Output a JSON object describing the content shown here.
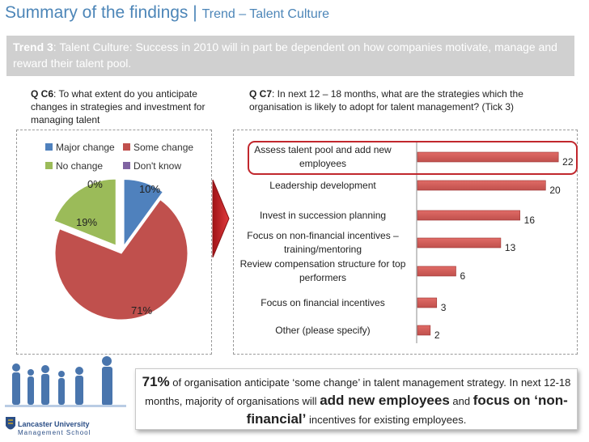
{
  "header": {
    "title": "Summary of the findings",
    "separator": " | ",
    "subtitle": "Trend – Talent Culture"
  },
  "trend": {
    "label": "Trend 3",
    "text": ": Talent Culture: Success in 2010 will in part be dependent on how companies motivate, manage and reward their talent pool."
  },
  "questions": {
    "c6": {
      "code": "Q C6",
      "text": ": To what extent do you anticipate changes in strategies and investment for managing talent"
    },
    "c7": {
      "code": "Q C7",
      "text": ": In next 12 – 18 months, what are the strategies which the organisation is likely to adopt for talent management? (Tick 3)"
    }
  },
  "chart_data": [
    {
      "type": "pie",
      "question": "Q C6",
      "legend_position": "top",
      "categories": [
        "Major change",
        "Some change",
        "No change",
        "Don't know"
      ],
      "values": [
        10,
        71,
        19,
        0
      ],
      "labels": [
        "10%",
        "71%",
        "19%",
        "0%"
      ],
      "colors": [
        "#4f81bd",
        "#c0504d",
        "#9bbb59",
        "#8064a2"
      ],
      "exploded": true
    },
    {
      "type": "bar",
      "orientation": "horizontal",
      "question": "Q C7",
      "categories": [
        "Assess talent pool and add new employees",
        "Leadership development",
        "Invest in succession planning",
        "Focus on non-financial incentives – training/mentoring",
        "Review compensation structure for top performers",
        "Focus on financial incentives",
        "Other (please specify)"
      ],
      "values": [
        22,
        20,
        16,
        13,
        6,
        3,
        2
      ],
      "xlim": [
        0,
        24
      ],
      "bar_color": "#c0504d",
      "highlighted_category": "Assess talent pool and add new employees"
    }
  ],
  "summary": {
    "stat": "71%",
    "part1": " of organisation anticipate ‘some change’ in talent management strategy. In next 12-18 months, majority of organisations will ",
    "emph1": "add new employees",
    "part2": " and ",
    "emph2": "focus on ‘non-financial’",
    "part3": " incentives for existing employees."
  },
  "logo": {
    "name": "Lancaster University",
    "sub": "Management School"
  }
}
